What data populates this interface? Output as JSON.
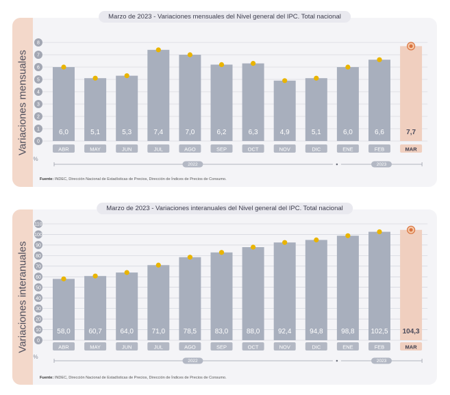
{
  "charts": [
    {
      "header_title": "Marzo de 2023 - Variaciones mensuales del Nivel general del IPC. Total nacional",
      "side_label": "Variaciones mensuales",
      "unit_label": "%",
      "source_label": "Fuente:",
      "source_text": "INDEC, Dirección Nacional de Estadísticas de Precios, Dirección de Índices de Precios de Consumo.",
      "year_labels": [
        "2022",
        "2023"
      ]
    },
    {
      "header_title": "Marzo de 2023 - Variaciones interanuales del Nivel general del IPC. Total nacional",
      "side_label": "Variaciones interanuales",
      "unit_label": "%",
      "source_label": "Fuente:",
      "source_text": "INDEC, Dirección Nacional de Estadísticas de Precios, Dirección de Índices de Precios de Consumo.",
      "year_labels": [
        "2022",
        "2023"
      ]
    }
  ],
  "colors": {
    "bar": "#a8afbd",
    "bar_highlight": "#f0cfbf",
    "dot": "#e9b400",
    "dot_highlight": "#d9733f",
    "axis_circle": "#a3a7b3",
    "side_band": "#f3d8ca"
  },
  "chart_data": [
    {
      "type": "bar",
      "title": "Variaciones mensuales del Nivel general del IPC. Total nacional",
      "ylabel": "Variaciones mensuales",
      "categories": [
        "ABR",
        "MAY",
        "JUN",
        "JUL",
        "AGO",
        "SEP",
        "OCT",
        "NOV",
        "DIC",
        "ENE",
        "FEB",
        "MAR"
      ],
      "values": [
        6.0,
        5.1,
        5.3,
        7.4,
        7.0,
        6.2,
        6.3,
        4.9,
        5.1,
        6.0,
        6.6,
        7.7
      ],
      "value_labels": [
        "6,0",
        "5,1",
        "5,3",
        "7,4",
        "7,0",
        "6,2",
        "6,3",
        "4,9",
        "5,1",
        "6,0",
        "6,6",
        "7,7"
      ],
      "ylim": [
        0,
        8
      ],
      "yticks": [
        0,
        1,
        2,
        3,
        4,
        5,
        6,
        7,
        8
      ],
      "grid": true,
      "highlight_index": 11
    },
    {
      "type": "bar",
      "title": "Variaciones interanuales del Nivel general del IPC. Total nacional",
      "ylabel": "Variaciones interanuales",
      "categories": [
        "ABR",
        "MAY",
        "JUN",
        "JUL",
        "AGO",
        "SEP",
        "OCT",
        "NOV",
        "DIC",
        "ENE",
        "FEB",
        "MAR"
      ],
      "values": [
        58.0,
        60.7,
        64.0,
        71.0,
        78.5,
        83.0,
        88.0,
        92.4,
        94.8,
        98.8,
        102.5,
        104.3
      ],
      "value_labels": [
        "58,0",
        "60,7",
        "64,0",
        "71,0",
        "78,5",
        "83,0",
        "88,0",
        "92,4",
        "94,8",
        "98,8",
        "102,5",
        "104,3"
      ],
      "ylim": [
        0,
        110
      ],
      "yticks": [
        0,
        10,
        20,
        30,
        40,
        50,
        60,
        70,
        80,
        90,
        100,
        110
      ],
      "grid": true,
      "highlight_index": 11
    }
  ]
}
